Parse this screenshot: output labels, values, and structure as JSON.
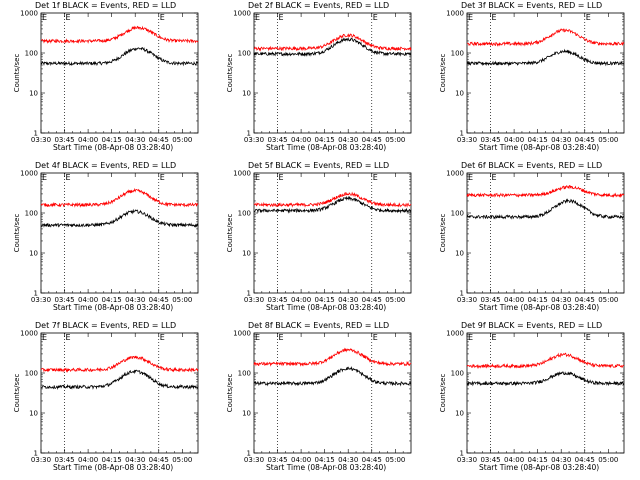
{
  "chart_data": {
    "type": "line",
    "y_scale": "log",
    "ylim": [
      1,
      1000
    ],
    "xlim": [
      "03:30",
      "05:10"
    ],
    "x_ticks": [
      "03:30",
      "03:45",
      "04:00",
      "04:15",
      "04:30",
      "04:45",
      "05:00"
    ],
    "y_ticks": [
      "1",
      "10",
      "100",
      "1000"
    ],
    "vertical_markers": {
      "times": [
        "03:45",
        "04:45"
      ],
      "label": "E"
    },
    "ylabel": "Counts/sec",
    "xlabel": "Start Time (08-Apr-08 03:28:40)",
    "colors": {
      "events": "#000000",
      "lld": "#ff0000"
    },
    "panels": [
      {
        "title": "Det 1f BLACK = Events, RED = LLD",
        "series": [
          {
            "name": "BLACK = Events",
            "base": 55,
            "peak_time": "04:32",
            "peak": 130
          },
          {
            "name": "RED = LLD",
            "base": 200,
            "peak_time": "04:32",
            "peak": 430
          }
        ]
      },
      {
        "title": "Det 2f BLACK = Events, RED = LLD",
        "series": [
          {
            "name": "BLACK = Events",
            "base": 95,
            "peak_time": "04:30",
            "peak": 220
          },
          {
            "name": "RED = LLD",
            "base": 130,
            "peak_time": "04:30",
            "peak": 280
          }
        ]
      },
      {
        "title": "Det 3f BLACK = Events, RED = LLD",
        "series": [
          {
            "name": "BLACK = Events",
            "base": 55,
            "peak_time": "04:32",
            "peak": 110
          },
          {
            "name": "RED = LLD",
            "base": 170,
            "peak_time": "04:32",
            "peak": 370
          }
        ]
      },
      {
        "title": "Det 4f BLACK = Events, RED = LLD",
        "series": [
          {
            "name": "BLACK = Events",
            "base": 50,
            "peak_time": "04:30",
            "peak": 110
          },
          {
            "name": "RED = LLD",
            "base": 160,
            "peak_time": "04:30",
            "peak": 360
          }
        ]
      },
      {
        "title": "Det 5f BLACK = Events, RED = LLD",
        "series": [
          {
            "name": "BLACK = Events",
            "base": 115,
            "peak_time": "04:30",
            "peak": 230
          },
          {
            "name": "RED = LLD",
            "base": 160,
            "peak_time": "04:30",
            "peak": 300
          }
        ]
      },
      {
        "title": "Det 6f BLACK = Events, RED = LLD",
        "series": [
          {
            "name": "BLACK = Events",
            "base": 80,
            "peak_time": "04:35",
            "peak": 200
          },
          {
            "name": "RED = LLD",
            "base": 280,
            "peak_time": "04:35",
            "peak": 450
          }
        ]
      },
      {
        "title": "Det 7f BLACK = Events, RED = LLD",
        "series": [
          {
            "name": "BLACK = Events",
            "base": 45,
            "peak_time": "04:30",
            "peak": 110
          },
          {
            "name": "RED = LLD",
            "base": 120,
            "peak_time": "04:30",
            "peak": 250
          }
        ]
      },
      {
        "title": "Det 8f BLACK = Events, RED = LLD",
        "series": [
          {
            "name": "BLACK = Events",
            "base": 55,
            "peak_time": "04:30",
            "peak": 130
          },
          {
            "name": "RED = LLD",
            "base": 170,
            "peak_time": "04:30",
            "peak": 380
          }
        ]
      },
      {
        "title": "Det 9f BLACK = Events, RED = LLD",
        "series": [
          {
            "name": "BLACK = Events",
            "base": 55,
            "peak_time": "04:32",
            "peak": 100
          },
          {
            "name": "RED = LLD",
            "base": 150,
            "peak_time": "04:32",
            "peak": 290
          }
        ]
      }
    ]
  }
}
